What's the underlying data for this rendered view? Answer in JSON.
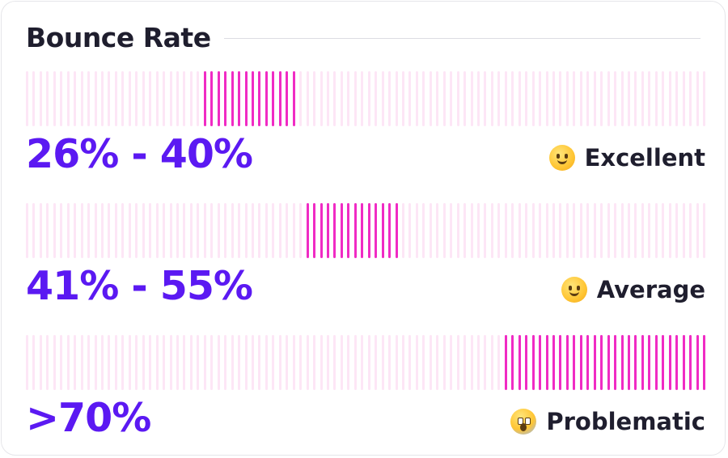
{
  "card": {
    "title": "Bounce Rate"
  },
  "rows": [
    {
      "range": "26% - 40%",
      "status": "Excellent",
      "icon": "party-face-icon",
      "active_from": 0.26,
      "active_to": 0.4
    },
    {
      "range": "41% - 55%",
      "status": "Average",
      "icon": "smiling-face-icon",
      "active_from": 0.41,
      "active_to": 0.55
    },
    {
      "range": ">70%",
      "status": "Problematic",
      "icon": "screaming-face-icon",
      "active_from": 0.7,
      "active_to": 1.0
    }
  ],
  "colors": {
    "accent_range_text": "#5b19f2",
    "active_tick": "#f02bc4",
    "inactive_tick": "#fde6f6",
    "title_text": "#1f1e2e"
  }
}
